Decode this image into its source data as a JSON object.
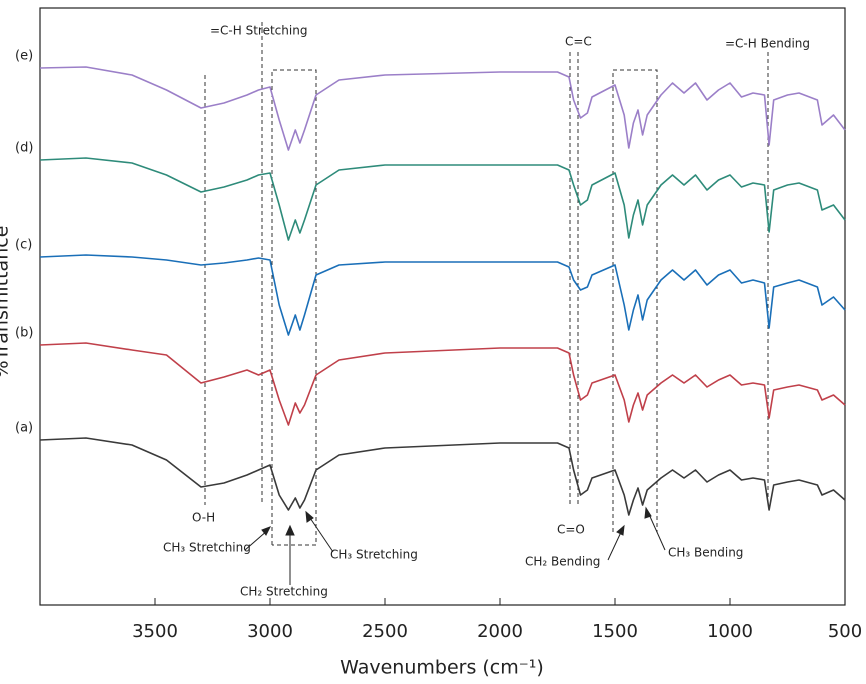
{
  "chart_data": {
    "type": "line",
    "x_label": "Wavenumbers (cm⁻¹)",
    "y_label": "%Transmittance",
    "xlim": [
      4000,
      500
    ],
    "xticks": [
      3500,
      3000,
      2500,
      2000,
      1500,
      1000,
      500
    ],
    "ylim": [
      0,
      597
    ],
    "x": [
      4000,
      3800,
      3600,
      3450,
      3300,
      3200,
      3100,
      3050,
      3000,
      2960,
      2920,
      2890,
      2870,
      2850,
      2800,
      2700,
      2500,
      2000,
      1750,
      1700,
      1680,
      1650,
      1620,
      1600,
      1500,
      1460,
      1440,
      1420,
      1400,
      1380,
      1360,
      1300,
      1250,
      1200,
      1150,
      1100,
      1050,
      1000,
      950,
      900,
      850,
      830,
      810,
      750,
      700,
      620,
      600,
      550,
      500
    ],
    "series": [
      {
        "name": "(a)",
        "color": "#3a3a3a",
        "values": [
          165,
          167,
          160,
          145,
          118,
          122,
          130,
          135,
          140,
          110,
          95,
          107,
          97,
          105,
          135,
          150,
          157,
          162,
          162,
          157,
          135,
          110,
          115,
          127,
          135,
          110,
          90,
          105,
          117,
          100,
          115,
          127,
          135,
          127,
          135,
          123,
          130,
          135,
          125,
          127,
          125,
          95,
          120,
          123,
          125,
          120,
          110,
          115,
          105
        ]
      },
      {
        "name": "(b)",
        "color": "#c0404a",
        "values": [
          260,
          262,
          255,
          250,
          222,
          228,
          235,
          230,
          235,
          205,
          180,
          202,
          192,
          200,
          230,
          245,
          252,
          257,
          257,
          252,
          230,
          205,
          210,
          222,
          230,
          205,
          183,
          200,
          212,
          195,
          210,
          222,
          230,
          222,
          230,
          218,
          225,
          230,
          220,
          222,
          220,
          187,
          215,
          218,
          220,
          215,
          205,
          210,
          200
        ]
      },
      {
        "name": "(c)",
        "color": "#1a6fb8",
        "values": [
          348,
          350,
          348,
          345,
          340,
          342,
          345,
          347,
          345,
          300,
          270,
          290,
          275,
          290,
          330,
          340,
          343,
          343,
          343,
          338,
          325,
          315,
          318,
          330,
          340,
          300,
          275,
          295,
          310,
          285,
          305,
          325,
          335,
          325,
          335,
          320,
          330,
          335,
          322,
          325,
          322,
          277,
          318,
          322,
          325,
          318,
          300,
          308,
          295
        ]
      },
      {
        "name": "(d)",
        "color": "#2e8b7a",
        "values": [
          445,
          447,
          442,
          430,
          413,
          418,
          425,
          430,
          432,
          400,
          365,
          385,
          372,
          385,
          420,
          435,
          440,
          440,
          440,
          435,
          420,
          400,
          405,
          420,
          432,
          400,
          367,
          390,
          405,
          380,
          400,
          420,
          430,
          420,
          430,
          415,
          425,
          430,
          418,
          422,
          420,
          373,
          415,
          420,
          422,
          415,
          395,
          400,
          385
        ]
      },
      {
        "name": "(e)",
        "color": "#9b7fc8",
        "values": [
          537,
          538,
          530,
          515,
          497,
          502,
          510,
          515,
          518,
          485,
          455,
          475,
          462,
          475,
          510,
          525,
          530,
          533,
          533,
          528,
          505,
          487,
          492,
          508,
          520,
          490,
          457,
          482,
          495,
          470,
          490,
          510,
          522,
          512,
          522,
          505,
          515,
          522,
          508,
          512,
          510,
          460,
          505,
          510,
          512,
          505,
          480,
          490,
          475
        ]
      }
    ],
    "annotations": [
      "=C-H Stretching",
      "C=C",
      "=C-H Bending",
      "O-H",
      "C=O",
      "CH₃ Stretching",
      "CH₂ Stretching",
      "CH₃ Stretching",
      "CH₂ Bending",
      "CH₃ Bending"
    ]
  }
}
